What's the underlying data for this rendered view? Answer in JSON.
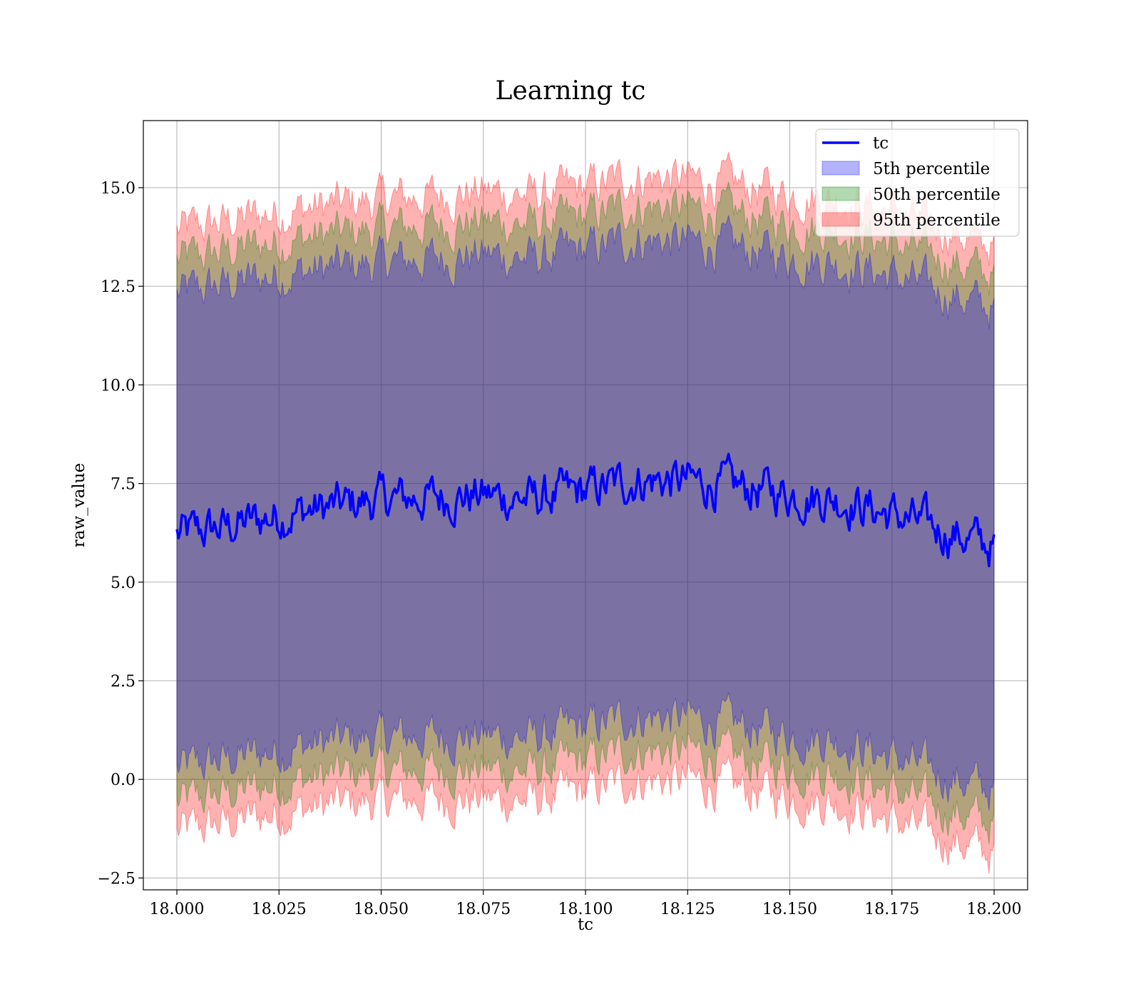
{
  "chart_data": {
    "type": "area",
    "title": "Learning tc",
    "xlabel": "tc",
    "ylabel": "raw_value",
    "xlim": [
      17.9918,
      18.2082
    ],
    "ylim": [
      -2.8,
      16.7
    ],
    "x_ticks": [
      18.0,
      18.025,
      18.05,
      18.075,
      18.1,
      18.125,
      18.15,
      18.175,
      18.2
    ],
    "x_tick_labels": [
      "18.000",
      "18.025",
      "18.050",
      "18.075",
      "18.100",
      "18.125",
      "18.150",
      "18.175",
      "18.200"
    ],
    "y_ticks": [
      -2.5,
      0.0,
      2.5,
      5.0,
      7.5,
      10.0,
      12.5,
      15.0
    ],
    "y_tick_labels": [
      "−2.5",
      "0.0",
      "2.5",
      "5.0",
      "7.5",
      "10.0",
      "12.5",
      "15.0"
    ],
    "grid": true,
    "legend_position": "top-right",
    "colors": {
      "line": "#0000ff",
      "band_5": "#0000ff",
      "band_50": "#008000",
      "band_95": "#ff0000"
    },
    "x": [
      18.0,
      18.0125,
      18.025,
      18.0375,
      18.05,
      18.0625,
      18.075,
      18.0875,
      18.1,
      18.1125,
      18.125,
      18.1375,
      18.15,
      18.1625,
      18.175,
      18.1875,
      18.2
    ],
    "series": [
      {
        "name": "tc",
        "kind": "line",
        "values": [
          6.2,
          6.4,
          6.7,
          6.9,
          7.1,
          7.15,
          7.2,
          7.1,
          7.3,
          7.6,
          7.55,
          7.4,
          7.25,
          7.1,
          6.7,
          6.3,
          5.9
        ]
      },
      {
        "name": "5th percentile",
        "kind": "band",
        "lower": [
          0.25,
          0.5,
          0.75,
          0.95,
          1.05,
          1.1,
          1.1,
          1.05,
          1.3,
          1.6,
          1.55,
          1.35,
          1.15,
          1.0,
          0.55,
          0.1,
          -0.3
        ],
        "upper": [
          12.3,
          12.55,
          12.8,
          12.95,
          13.1,
          13.2,
          13.3,
          13.2,
          13.4,
          13.7,
          13.6,
          13.45,
          13.25,
          13.1,
          12.75,
          12.35,
          11.9
        ]
      },
      {
        "name": "50th percentile",
        "kind": "band",
        "lower": [
          -0.6,
          -0.35,
          -0.1,
          0.1,
          0.2,
          0.25,
          0.25,
          0.2,
          0.45,
          0.75,
          0.7,
          0.5,
          0.3,
          0.15,
          -0.3,
          -0.75,
          -1.15
        ],
        "upper": [
          13.15,
          13.4,
          13.65,
          13.8,
          13.95,
          14.05,
          14.15,
          14.05,
          14.25,
          14.55,
          14.45,
          14.3,
          14.1,
          13.95,
          13.6,
          13.2,
          12.75
        ]
      },
      {
        "name": "95th percentile",
        "kind": "band",
        "lower": [
          -1.35,
          -1.1,
          -0.85,
          -0.65,
          -0.55,
          -0.5,
          -0.5,
          -0.55,
          -0.3,
          0.0,
          -0.05,
          -0.25,
          -0.45,
          -0.6,
          -1.05,
          -1.5,
          -1.9
        ],
        "upper": [
          13.9,
          14.15,
          14.4,
          14.55,
          14.7,
          14.8,
          14.9,
          14.8,
          15.0,
          15.3,
          15.2,
          15.05,
          14.85,
          14.7,
          14.35,
          13.95,
          13.5
        ]
      }
    ]
  }
}
